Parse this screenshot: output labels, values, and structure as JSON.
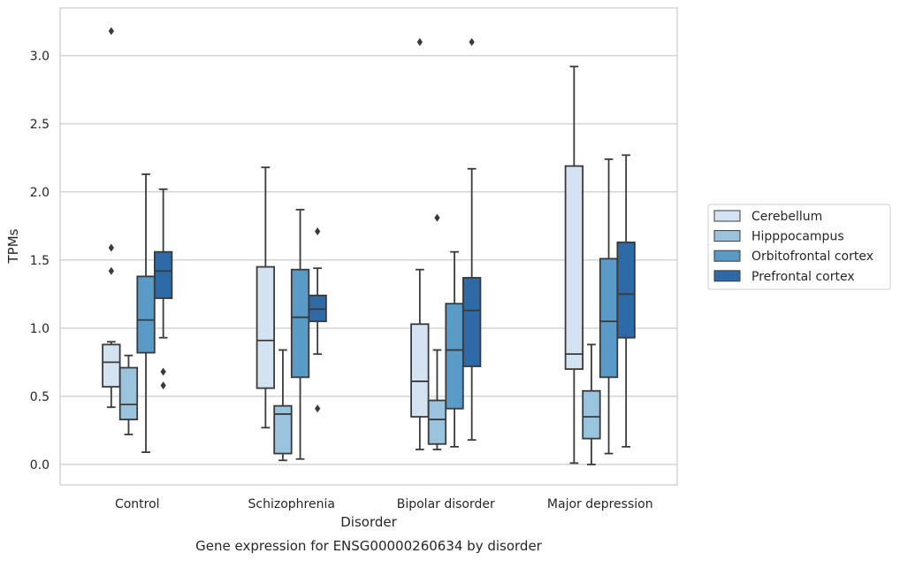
{
  "chart_data": {
    "type": "box",
    "title": "",
    "caption": "Gene expression for ENSG00000260634 by disorder",
    "xlabel": "Disorder",
    "ylabel": "TPMs",
    "categories": [
      "Control",
      "Schizophrenia",
      "Bipolar disorder",
      "Major depression"
    ],
    "ylim": [
      -0.15,
      3.35
    ],
    "yticks": [
      "0.0",
      "0.5",
      "1.0",
      "1.5",
      "2.0",
      "2.5",
      "3.0"
    ],
    "grid": "horizontal",
    "legend_position": "right",
    "series": [
      {
        "name": "Cerebellum",
        "color": "#d4e3f2",
        "boxes": [
          {
            "whisker_low": 0.42,
            "q1": 0.57,
            "median": 0.75,
            "q3": 0.88,
            "whisker_high": 0.9,
            "outliers": [
              3.18,
              1.59,
              1.42
            ]
          },
          {
            "whisker_low": 0.27,
            "q1": 0.56,
            "median": 0.91,
            "q3": 1.45,
            "whisker_high": 2.18,
            "outliers": []
          },
          {
            "whisker_low": 0.11,
            "q1": 0.35,
            "median": 0.61,
            "q3": 1.03,
            "whisker_high": 1.43,
            "outliers": [
              3.1
            ]
          },
          {
            "whisker_low": 0.01,
            "q1": 0.7,
            "median": 0.81,
            "q3": 2.19,
            "whisker_high": 2.92,
            "outliers": []
          }
        ]
      },
      {
        "name": "Hipppocampus",
        "color": "#9ac4de",
        "boxes": [
          {
            "whisker_low": 0.22,
            "q1": 0.33,
            "median": 0.44,
            "q3": 0.71,
            "whisker_high": 0.8,
            "outliers": []
          },
          {
            "whisker_low": 0.03,
            "q1": 0.08,
            "median": 0.37,
            "q3": 0.43,
            "whisker_high": 0.84,
            "outliers": []
          },
          {
            "whisker_low": 0.11,
            "q1": 0.15,
            "median": 0.33,
            "q3": 0.47,
            "whisker_high": 0.84,
            "outliers": [
              1.81
            ]
          },
          {
            "whisker_low": 0.0,
            "q1": 0.19,
            "median": 0.35,
            "q3": 0.54,
            "whisker_high": 0.88,
            "outliers": []
          }
        ]
      },
      {
        "name": "Orbitofrontal cortex",
        "color": "#5a9ac7",
        "boxes": [
          {
            "whisker_low": 0.09,
            "q1": 0.82,
            "median": 1.06,
            "q3": 1.38,
            "whisker_high": 2.13,
            "outliers": []
          },
          {
            "whisker_low": 0.04,
            "q1": 0.64,
            "median": 1.08,
            "q3": 1.43,
            "whisker_high": 1.87,
            "outliers": []
          },
          {
            "whisker_low": 0.13,
            "q1": 0.41,
            "median": 0.84,
            "q3": 1.18,
            "whisker_high": 1.56,
            "outliers": []
          },
          {
            "whisker_low": 0.08,
            "q1": 0.64,
            "median": 1.05,
            "q3": 1.51,
            "whisker_high": 2.24,
            "outliers": []
          }
        ]
      },
      {
        "name": "Prefrontal cortex",
        "color": "#2e6aa6",
        "boxes": [
          {
            "whisker_low": 0.93,
            "q1": 1.22,
            "median": 1.42,
            "q3": 1.56,
            "whisker_high": 2.02,
            "outliers": [
              0.68,
              0.58
            ]
          },
          {
            "whisker_low": 0.81,
            "q1": 1.05,
            "median": 1.14,
            "q3": 1.24,
            "whisker_high": 1.44,
            "outliers": [
              1.71,
              0.41
            ]
          },
          {
            "whisker_low": 0.18,
            "q1": 0.72,
            "median": 1.13,
            "q3": 1.37,
            "whisker_high": 2.17,
            "outliers": [
              3.1
            ]
          },
          {
            "whisker_low": 0.13,
            "q1": 0.93,
            "median": 1.25,
            "q3": 1.63,
            "whisker_high": 2.27,
            "outliers": []
          }
        ]
      }
    ]
  }
}
